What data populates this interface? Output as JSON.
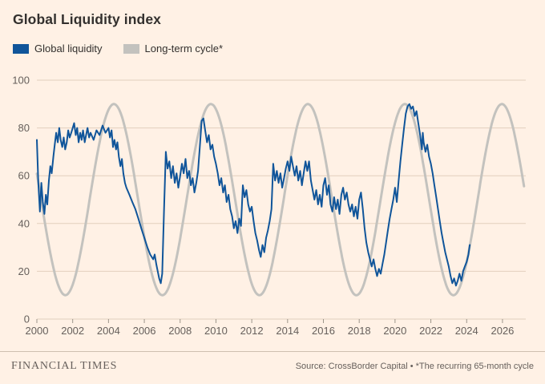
{
  "title": "Global Liquidity index",
  "legend": [
    {
      "key": "global-liquidity",
      "label": "Global liquidity",
      "color": "#10559A"
    },
    {
      "key": "long-term-cycle",
      "label": "Long-term cycle*",
      "color": "#C3C2BE"
    }
  ],
  "footer": {
    "brand": "FINANCIAL TIMES",
    "source": "Source: CrossBorder Capital • *The recurring 65-month cycle"
  },
  "colors": {
    "background": "#FFF1E5",
    "grid": "#E2D0BD",
    "axis_tick": "#9C958A",
    "text_dark": "#33302E",
    "text_muted": "#66605C"
  },
  "chart_data": {
    "type": "line",
    "title": "Global Liquidity index",
    "xlabel": "",
    "ylabel": "",
    "x_range": [
      2000,
      2027.3
    ],
    "ylim": [
      0,
      100
    ],
    "yticks": [
      0,
      20,
      40,
      60,
      80,
      100
    ],
    "xticks": [
      2000,
      2002,
      2004,
      2006,
      2008,
      2010,
      2012,
      2014,
      2016,
      2018,
      2020,
      2022,
      2024,
      2026
    ],
    "grid": "horizontal",
    "legend_position": "top-left",
    "series": [
      {
        "name": "Global liquidity",
        "type": "points",
        "points": [
          [
            2000.0,
            75
          ],
          [
            2000.08,
            57
          ],
          [
            2000.17,
            45
          ],
          [
            2000.25,
            57
          ],
          [
            2000.33,
            49
          ],
          [
            2000.42,
            44
          ],
          [
            2000.5,
            52
          ],
          [
            2000.58,
            48
          ],
          [
            2000.67,
            58
          ],
          [
            2000.75,
            64
          ],
          [
            2000.83,
            61
          ],
          [
            2000.92,
            68
          ],
          [
            2001.0,
            73
          ],
          [
            2001.08,
            78
          ],
          [
            2001.17,
            74
          ],
          [
            2001.25,
            80
          ],
          [
            2001.33,
            75
          ],
          [
            2001.42,
            72
          ],
          [
            2001.5,
            76
          ],
          [
            2001.58,
            71
          ],
          [
            2001.67,
            74
          ],
          [
            2001.75,
            79
          ],
          [
            2001.83,
            76
          ],
          [
            2001.92,
            78
          ],
          [
            2002.0,
            80
          ],
          [
            2002.08,
            82
          ],
          [
            2002.17,
            77
          ],
          [
            2002.25,
            80
          ],
          [
            2002.33,
            74
          ],
          [
            2002.42,
            78
          ],
          [
            2002.5,
            75
          ],
          [
            2002.58,
            79
          ],
          [
            2002.67,
            74
          ],
          [
            2002.75,
            77
          ],
          [
            2002.83,
            80
          ],
          [
            2002.92,
            76
          ],
          [
            2003.0,
            78
          ],
          [
            2003.17,
            75
          ],
          [
            2003.33,
            79
          ],
          [
            2003.5,
            77
          ],
          [
            2003.67,
            81
          ],
          [
            2003.83,
            78
          ],
          [
            2004.0,
            80
          ],
          [
            2004.08,
            76
          ],
          [
            2004.17,
            79
          ],
          [
            2004.25,
            72
          ],
          [
            2004.33,
            75
          ],
          [
            2004.42,
            71
          ],
          [
            2004.5,
            74
          ],
          [
            2004.58,
            68
          ],
          [
            2004.67,
            64
          ],
          [
            2004.75,
            67
          ],
          [
            2004.83,
            61
          ],
          [
            2004.92,
            57
          ],
          [
            2005.0,
            55
          ],
          [
            2005.17,
            52
          ],
          [
            2005.33,
            49
          ],
          [
            2005.5,
            46
          ],
          [
            2005.67,
            42
          ],
          [
            2005.83,
            38
          ],
          [
            2006.0,
            34
          ],
          [
            2006.17,
            30
          ],
          [
            2006.33,
            27
          ],
          [
            2006.5,
            25
          ],
          [
            2006.58,
            27
          ],
          [
            2006.67,
            23
          ],
          [
            2006.75,
            20
          ],
          [
            2006.83,
            17
          ],
          [
            2006.92,
            15
          ],
          [
            2007.0,
            19
          ],
          [
            2007.05,
            32
          ],
          [
            2007.1,
            45
          ],
          [
            2007.15,
            58
          ],
          [
            2007.2,
            70
          ],
          [
            2007.3,
            63
          ],
          [
            2007.4,
            66
          ],
          [
            2007.5,
            59
          ],
          [
            2007.6,
            64
          ],
          [
            2007.7,
            57
          ],
          [
            2007.8,
            61
          ],
          [
            2007.9,
            55
          ],
          [
            2008.0,
            60
          ],
          [
            2008.1,
            65
          ],
          [
            2008.2,
            61
          ],
          [
            2008.3,
            67
          ],
          [
            2008.4,
            59
          ],
          [
            2008.5,
            62
          ],
          [
            2008.6,
            56
          ],
          [
            2008.7,
            59
          ],
          [
            2008.8,
            53
          ],
          [
            2008.9,
            57
          ],
          [
            2009.0,
            62
          ],
          [
            2009.1,
            72
          ],
          [
            2009.2,
            83
          ],
          [
            2009.3,
            84
          ],
          [
            2009.4,
            79
          ],
          [
            2009.5,
            74
          ],
          [
            2009.6,
            77
          ],
          [
            2009.7,
            71
          ],
          [
            2009.8,
            73
          ],
          [
            2009.9,
            68
          ],
          [
            2010.0,
            65
          ],
          [
            2010.1,
            61
          ],
          [
            2010.2,
            56
          ],
          [
            2010.3,
            59
          ],
          [
            2010.4,
            53
          ],
          [
            2010.5,
            56
          ],
          [
            2010.6,
            49
          ],
          [
            2010.7,
            52
          ],
          [
            2010.8,
            46
          ],
          [
            2010.9,
            43
          ],
          [
            2011.0,
            38
          ],
          [
            2011.1,
            41
          ],
          [
            2011.2,
            36
          ],
          [
            2011.3,
            42
          ],
          [
            2011.4,
            39
          ],
          [
            2011.5,
            56
          ],
          [
            2011.6,
            51
          ],
          [
            2011.7,
            54
          ],
          [
            2011.8,
            48
          ],
          [
            2011.9,
            45
          ],
          [
            2012.0,
            47
          ],
          [
            2012.1,
            41
          ],
          [
            2012.2,
            36
          ],
          [
            2012.3,
            33
          ],
          [
            2012.4,
            29
          ],
          [
            2012.5,
            26
          ],
          [
            2012.6,
            31
          ],
          [
            2012.7,
            28
          ],
          [
            2012.8,
            34
          ],
          [
            2012.9,
            37
          ],
          [
            2013.0,
            41
          ],
          [
            2013.1,
            46
          ],
          [
            2013.2,
            65
          ],
          [
            2013.3,
            58
          ],
          [
            2013.4,
            62
          ],
          [
            2013.5,
            57
          ],
          [
            2013.6,
            61
          ],
          [
            2013.7,
            55
          ],
          [
            2013.8,
            59
          ],
          [
            2013.9,
            63
          ],
          [
            2014.0,
            66
          ],
          [
            2014.1,
            62
          ],
          [
            2014.2,
            68
          ],
          [
            2014.3,
            64
          ],
          [
            2014.4,
            60
          ],
          [
            2014.5,
            64
          ],
          [
            2014.6,
            58
          ],
          [
            2014.7,
            62
          ],
          [
            2014.8,
            56
          ],
          [
            2014.9,
            61
          ],
          [
            2015.0,
            66
          ],
          [
            2015.1,
            62
          ],
          [
            2015.2,
            66
          ],
          [
            2015.3,
            58
          ],
          [
            2015.4,
            54
          ],
          [
            2015.5,
            50
          ],
          [
            2015.6,
            54
          ],
          [
            2015.7,
            48
          ],
          [
            2015.8,
            52
          ],
          [
            2015.9,
            47
          ],
          [
            2016.0,
            56
          ],
          [
            2016.1,
            59
          ],
          [
            2016.2,
            52
          ],
          [
            2016.3,
            56
          ],
          [
            2016.4,
            48
          ],
          [
            2016.5,
            45
          ],
          [
            2016.6,
            51
          ],
          [
            2016.7,
            46
          ],
          [
            2016.8,
            50
          ],
          [
            2016.9,
            44
          ],
          [
            2017.0,
            52
          ],
          [
            2017.1,
            55
          ],
          [
            2017.2,
            50
          ],
          [
            2017.3,
            53
          ],
          [
            2017.4,
            48
          ],
          [
            2017.5,
            45
          ],
          [
            2017.6,
            48
          ],
          [
            2017.7,
            43
          ],
          [
            2017.8,
            47
          ],
          [
            2017.9,
            42
          ],
          [
            2018.0,
            50
          ],
          [
            2018.1,
            53
          ],
          [
            2018.2,
            46
          ],
          [
            2018.3,
            38
          ],
          [
            2018.4,
            32
          ],
          [
            2018.5,
            28
          ],
          [
            2018.6,
            25
          ],
          [
            2018.7,
            22
          ],
          [
            2018.8,
            25
          ],
          [
            2018.9,
            21
          ],
          [
            2019.0,
            18
          ],
          [
            2019.1,
            21
          ],
          [
            2019.2,
            19
          ],
          [
            2019.3,
            23
          ],
          [
            2019.4,
            27
          ],
          [
            2019.5,
            32
          ],
          [
            2019.6,
            37
          ],
          [
            2019.7,
            42
          ],
          [
            2019.8,
            46
          ],
          [
            2019.9,
            50
          ],
          [
            2020.0,
            55
          ],
          [
            2020.1,
            49
          ],
          [
            2020.2,
            58
          ],
          [
            2020.3,
            66
          ],
          [
            2020.4,
            73
          ],
          [
            2020.5,
            80
          ],
          [
            2020.6,
            86
          ],
          [
            2020.7,
            89
          ],
          [
            2020.8,
            90
          ],
          [
            2020.9,
            88
          ],
          [
            2021.0,
            89
          ],
          [
            2021.1,
            85
          ],
          [
            2021.2,
            87
          ],
          [
            2021.3,
            82
          ],
          [
            2021.4,
            77
          ],
          [
            2021.5,
            71
          ],
          [
            2021.55,
            78
          ],
          [
            2021.6,
            74
          ],
          [
            2021.7,
            70
          ],
          [
            2021.8,
            73
          ],
          [
            2021.9,
            68
          ],
          [
            2022.0,
            65
          ],
          [
            2022.1,
            61
          ],
          [
            2022.2,
            56
          ],
          [
            2022.3,
            51
          ],
          [
            2022.4,
            46
          ],
          [
            2022.5,
            41
          ],
          [
            2022.6,
            36
          ],
          [
            2022.7,
            32
          ],
          [
            2022.8,
            28
          ],
          [
            2022.9,
            25
          ],
          [
            2023.0,
            22
          ],
          [
            2023.1,
            18
          ],
          [
            2023.2,
            15
          ],
          [
            2023.3,
            17
          ],
          [
            2023.4,
            14
          ],
          [
            2023.5,
            16
          ],
          [
            2023.6,
            19
          ],
          [
            2023.7,
            16
          ],
          [
            2023.8,
            20
          ],
          [
            2023.9,
            22
          ],
          [
            2024.0,
            24
          ],
          [
            2024.1,
            27
          ],
          [
            2024.17,
            31
          ]
        ]
      },
      {
        "name": "Long-term cycle*",
        "type": "sine",
        "midline": 50,
        "amplitude": 40,
        "period_months": 65,
        "period_years": 5.4167,
        "peak_year": 2004.3,
        "x_start": 2000.0,
        "x_end": 2027.2
      }
    ]
  }
}
